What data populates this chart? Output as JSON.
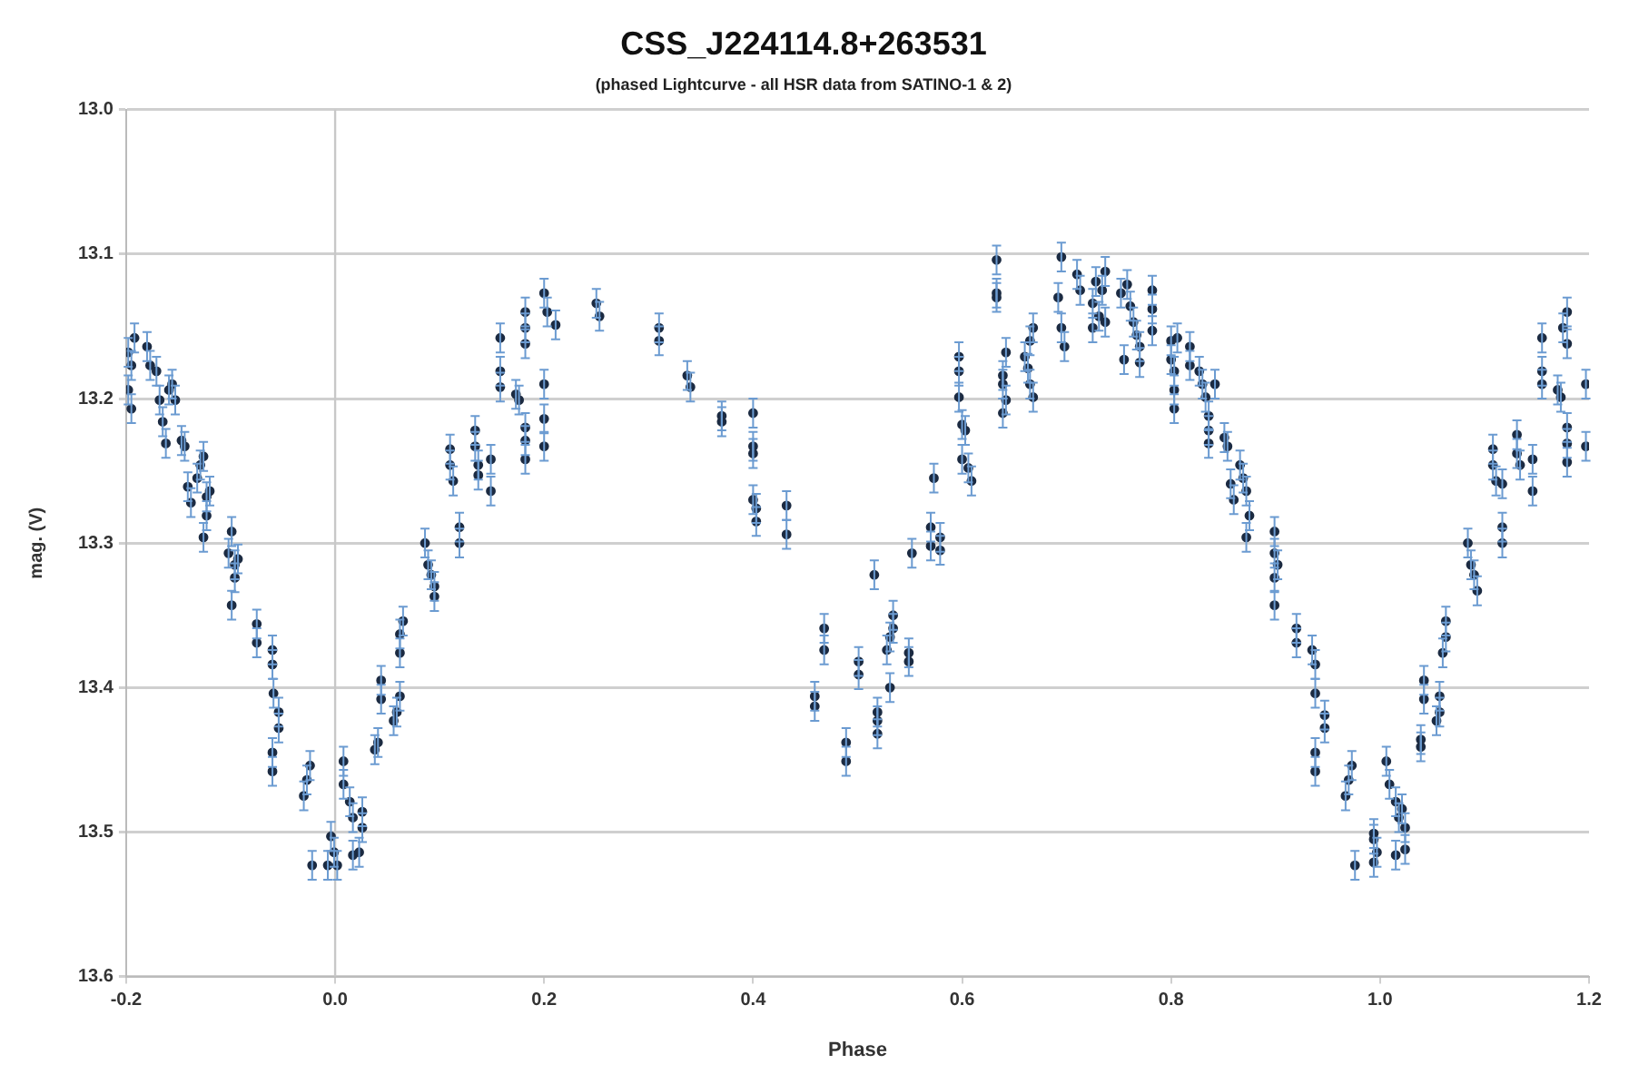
{
  "chart_data": {
    "type": "scatter",
    "title": "CSS_J224114.8+263531",
    "subtitle": "(phased Lightcurve - all HSR data from SATINO-1 & 2)",
    "xlabel": "Phase",
    "ylabel": "mag. (V)",
    "xlim": [
      -0.2,
      1.2
    ],
    "xticks": [
      -0.2,
      {
        "value": 0,
        "label": "0.0"
      },
      0.2,
      0.4,
      0.6,
      0.8,
      {
        "value": 1,
        "label": "1.0"
      },
      1.2
    ],
    "ylim": [
      13.6,
      13.0
    ],
    "yticks": [
      {
        "value": 13,
        "label": "13.0"
      },
      13.1,
      13.2,
      13.3,
      13.4,
      13.5,
      13.6
    ],
    "grid": "y",
    "legend": false,
    "marker": "circle",
    "ref_lines": [
      {
        "axis": "x",
        "value": 0,
        "color": "#c8c8c8"
      }
    ],
    "series": [
      {
        "color": "#1c2b42",
        "x": [
          -0.198,
          -0.198,
          -0.195,
          -0.192,
          -0.195,
          -0.18,
          -0.177,
          -0.171,
          -0.168,
          -0.165,
          -0.162,
          -0.159,
          -0.156,
          -0.153,
          -0.147,
          -0.144,
          -0.141,
          -0.138,
          -0.132,
          -0.129,
          -0.126,
          -0.126,
          -0.123,
          -0.12,
          -0.123,
          -0.102,
          -0.099,
          -0.096,
          -0.093,
          -0.099,
          -0.096,
          -0.075,
          -0.075,
          -0.06,
          -0.06,
          -0.059,
          -0.054,
          -0.054,
          -0.06,
          -0.06,
          -0.03,
          -0.027,
          -0.024,
          -0.022,
          -0.007,
          -0.004,
          -0.001,
          0.002,
          0.008,
          0.008,
          0.014,
          0.017,
          0.017,
          0.023,
          0.026,
          0.026,
          0.038,
          0.041,
          0.044,
          0.044,
          0.056,
          0.059,
          0.062,
          0.062,
          0.062,
          0.065,
          0.086,
          0.089,
          0.092,
          0.095,
          0.095,
          0.11,
          0.11,
          0.113,
          0.119,
          0.119,
          0.134,
          0.134,
          0.137,
          0.137,
          0.149,
          0.149,
          0.158,
          0.158,
          0.158,
          0.173,
          0.176,
          0.182,
          0.182,
          0.182,
          0.182,
          0.182,
          0.182,
          0.2,
          0.203,
          0.211,
          0.2,
          0.2,
          0.2,
          0.25,
          0.253,
          0.31,
          0.31,
          0.337,
          0.34,
          0.37,
          0.37,
          0.4,
          0.4,
          0.4,
          0.4,
          0.403,
          0.403,
          0.432,
          0.432,
          0.459,
          0.459,
          0.468,
          0.468,
          0.489,
          0.489,
          0.501,
          0.501,
          0.516,
          0.519,
          0.519,
          0.519,
          0.531,
          0.528,
          0.531,
          0.534,
          0.534,
          0.549,
          0.549,
          0.552,
          0.57,
          0.57,
          0.573,
          0.579,
          0.579,
          0.597,
          0.597,
          0.597,
          0.6,
          0.603,
          0.6,
          0.606,
          0.609,
          0.633,
          0.633,
          0.633,
          0.639,
          0.639,
          0.639,
          0.642,
          0.642,
          0.66,
          0.663,
          0.665,
          0.668,
          0.668,
          0.665,
          0.692,
          0.695,
          0.695,
          0.698,
          0.71,
          0.713,
          0.725,
          0.725,
          0.728,
          0.731,
          0.734,
          0.737,
          0.737,
          0.752,
          0.755,
          0.758,
          0.761,
          0.764,
          0.767,
          0.77,
          0.77,
          0.782,
          0.782,
          0.782,
          0.8,
          0.8,
          0.803,
          0.803,
          0.803,
          0.806,
          0.818,
          0.818,
          0.827,
          0.83,
          0.833,
          0.836,
          0.836,
          0.836,
          0.842,
          0.851,
          0.854,
          0.857,
          0.86,
          0.866,
          0.869,
          0.872,
          0.872,
          0.875,
          0.899,
          0.899,
          0.902,
          0.899,
          0.899,
          0.92,
          0.92,
          0.935,
          0.938,
          0.938,
          0.947,
          0.947,
          0.938,
          0.938,
          0.967,
          0.97,
          0.973,
          0.976,
          0.994,
          0.994,
          0.997,
          0.994,
          1.006,
          1.009,
          1.015,
          1.018,
          1.015,
          1.024,
          1.024,
          1.021,
          1.039,
          1.039,
          1.042,
          1.042,
          1.054,
          1.057,
          1.057,
          1.06,
          1.063,
          1.063,
          1.084,
          1.087,
          1.09,
          1.093,
          1.108,
          1.108,
          1.111,
          1.117,
          1.117,
          1.117,
          1.131,
          1.131,
          1.134,
          1.146,
          1.146,
          1.155,
          1.155,
          1.155,
          1.17,
          1.173,
          1.179,
          1.179,
          1.179,
          1.179,
          1.175,
          1.179,
          1.197,
          1.197
        ],
        "values": [
          13.168,
          13.194,
          13.207,
          13.158,
          13.177,
          13.164,
          13.177,
          13.181,
          13.201,
          13.216,
          13.231,
          13.194,
          13.19,
          13.201,
          13.229,
          13.233,
          13.261,
          13.272,
          13.255,
          13.246,
          13.24,
          13.296,
          13.268,
          13.264,
          13.281,
          13.307,
          13.292,
          13.315,
          13.311,
          13.343,
          13.324,
          13.356,
          13.369,
          13.374,
          13.384,
          13.404,
          13.417,
          13.428,
          13.445,
          13.458,
          13.475,
          13.464,
          13.454,
          13.523,
          13.523,
          13.503,
          13.514,
          13.523,
          13.451,
          13.467,
          13.479,
          13.49,
          13.516,
          13.514,
          13.497,
          13.486,
          13.443,
          13.438,
          13.408,
          13.395,
          13.423,
          13.417,
          13.406,
          13.376,
          13.363,
          13.354,
          13.3,
          13.315,
          13.322,
          13.33,
          13.337,
          13.235,
          13.246,
          13.257,
          13.289,
          13.3,
          13.222,
          13.233,
          13.246,
          13.253,
          13.242,
          13.264,
          13.158,
          13.181,
          13.192,
          13.197,
          13.201,
          13.242,
          13.22,
          13.229,
          13.151,
          13.14,
          13.162,
          13.127,
          13.14,
          13.149,
          13.19,
          13.214,
          13.233,
          13.134,
          13.143,
          13.151,
          13.16,
          13.184,
          13.192,
          13.212,
          13.216,
          13.21,
          13.233,
          13.238,
          13.27,
          13.276,
          13.285,
          13.274,
          13.294,
          13.406,
          13.413,
          13.359,
          13.374,
          13.438,
          13.451,
          13.382,
          13.391,
          13.322,
          13.417,
          13.423,
          13.432,
          13.4,
          13.374,
          13.365,
          13.359,
          13.35,
          13.376,
          13.382,
          13.307,
          13.289,
          13.302,
          13.255,
          13.296,
          13.305,
          13.171,
          13.181,
          13.199,
          13.218,
          13.222,
          13.242,
          13.248,
          13.257,
          13.104,
          13.13,
          13.127,
          13.184,
          13.19,
          13.21,
          13.168,
          13.201,
          13.171,
          13.179,
          13.16,
          13.151,
          13.199,
          13.19,
          13.13,
          13.102,
          13.151,
          13.164,
          13.114,
          13.125,
          13.134,
          13.151,
          13.119,
          13.143,
          13.125,
          13.112,
          13.147,
          13.127,
          13.173,
          13.121,
          13.136,
          13.147,
          13.156,
          13.164,
          13.175,
          13.125,
          13.138,
          13.153,
          13.16,
          13.173,
          13.181,
          13.194,
          13.207,
          13.158,
          13.164,
          13.177,
          13.181,
          13.19,
          13.199,
          13.212,
          13.222,
          13.231,
          13.19,
          13.227,
          13.233,
          13.259,
          13.27,
          13.246,
          13.255,
          13.264,
          13.296,
          13.281,
          13.292,
          13.307,
          13.315,
          13.343,
          13.324,
          13.359,
          13.369,
          13.374,
          13.384,
          13.404,
          13.419,
          13.428,
          13.445,
          13.458,
          13.475,
          13.464,
          13.454,
          13.523,
          13.521,
          13.505,
          13.514,
          13.501,
          13.451,
          13.467,
          13.479,
          13.49,
          13.516,
          13.512,
          13.497,
          13.484,
          13.441,
          13.436,
          13.408,
          13.395,
          13.423,
          13.417,
          13.406,
          13.376,
          13.365,
          13.354,
          13.3,
          13.315,
          13.322,
          13.333,
          13.235,
          13.246,
          13.257,
          13.259,
          13.289,
          13.3,
          13.225,
          13.238,
          13.246,
          13.242,
          13.264,
          13.158,
          13.181,
          13.19,
          13.194,
          13.199,
          13.22,
          13.231,
          13.244,
          13.14,
          13.151,
          13.162,
          13.19,
          13.233
        ],
        "errors": [
          0.01,
          0.01,
          0.01,
          0.01,
          0.01,
          0.01,
          0.01,
          0.01,
          0.01,
          0.01,
          0.01,
          0.01,
          0.01,
          0.01,
          0.01,
          0.01,
          0.01,
          0.01,
          0.01,
          0.01,
          0.01,
          0.01,
          0.01,
          0.01,
          0.01,
          0.01,
          0.01,
          0.01,
          0.01,
          0.01,
          0.01,
          0.01,
          0.01,
          0.01,
          0.01,
          0.01,
          0.01,
          0.01,
          0.01,
          0.01,
          0.01,
          0.01,
          0.01,
          0.01,
          0.01,
          0.01,
          0.01,
          0.01,
          0.01,
          0.01,
          0.01,
          0.01,
          0.01,
          0.01,
          0.01,
          0.01,
          0.01,
          0.01,
          0.01,
          0.01,
          0.01,
          0.01,
          0.01,
          0.01,
          0.01,
          0.01,
          0.01,
          0.01,
          0.01,
          0.01,
          0.01,
          0.01,
          0.01,
          0.01,
          0.01,
          0.01,
          0.01,
          0.01,
          0.01,
          0.01,
          0.01,
          0.01,
          0.01,
          0.01,
          0.01,
          0.01,
          0.01,
          0.01,
          0.01,
          0.01,
          0.01,
          0.01,
          0.01,
          0.01,
          0.01,
          0.01,
          0.01,
          0.01,
          0.01,
          0.01,
          0.01,
          0.01,
          0.01,
          0.01,
          0.01,
          0.01,
          0.01,
          0.01,
          0.01,
          0.01,
          0.01,
          0.01,
          0.01,
          0.01,
          0.01,
          0.01,
          0.01,
          0.01,
          0.01,
          0.01,
          0.01,
          0.01,
          0.01,
          0.01,
          0.01,
          0.01,
          0.01,
          0.01,
          0.01,
          0.01,
          0.01,
          0.01,
          0.01,
          0.01,
          0.01,
          0.01,
          0.01,
          0.01,
          0.01,
          0.01,
          0.01,
          0.01,
          0.01,
          0.01,
          0.01,
          0.01,
          0.01,
          0.01,
          0.01,
          0.01,
          0.01,
          0.01,
          0.01,
          0.01,
          0.01,
          0.01,
          0.01,
          0.01,
          0.01,
          0.01,
          0.01,
          0.01,
          0.01,
          0.01,
          0.01,
          0.01,
          0.01,
          0.01,
          0.01,
          0.01,
          0.01,
          0.01,
          0.01,
          0.01,
          0.01,
          0.01,
          0.01,
          0.01,
          0.01,
          0.01,
          0.01,
          0.01,
          0.01,
          0.01,
          0.01,
          0.01,
          0.01,
          0.01,
          0.01,
          0.01,
          0.01,
          0.01,
          0.01,
          0.01,
          0.01,
          0.01,
          0.01,
          0.01,
          0.01,
          0.01,
          0.01,
          0.01,
          0.01,
          0.01,
          0.01,
          0.01,
          0.01,
          0.01,
          0.01,
          0.01,
          0.01,
          0.01,
          0.01,
          0.01,
          0.01,
          0.01,
          0.01,
          0.01,
          0.01,
          0.01,
          0.01,
          0.01,
          0.01,
          0.01,
          0.01,
          0.01,
          0.01,
          0.01,
          0.01,
          0.01,
          0.01,
          0.01,
          0.01,
          0.01,
          0.01,
          0.01,
          0.01,
          0.01,
          0.01,
          0.01,
          0.01,
          0.01,
          0.01,
          0.01,
          0.01,
          0.01,
          0.01,
          0.01,
          0.01,
          0.01,
          0.01,
          0.01,
          0.01,
          0.01,
          0.01,
          0.01,
          0.01,
          0.01,
          0.01,
          0.01,
          0.01,
          0.01,
          0.01,
          0.01,
          0.01,
          0.01,
          0.01,
          0.01,
          0.01,
          0.01,
          0.01,
          0.01,
          0.01,
          0.01,
          0.01,
          0.01,
          0.01,
          0.01
        ]
      }
    ]
  }
}
